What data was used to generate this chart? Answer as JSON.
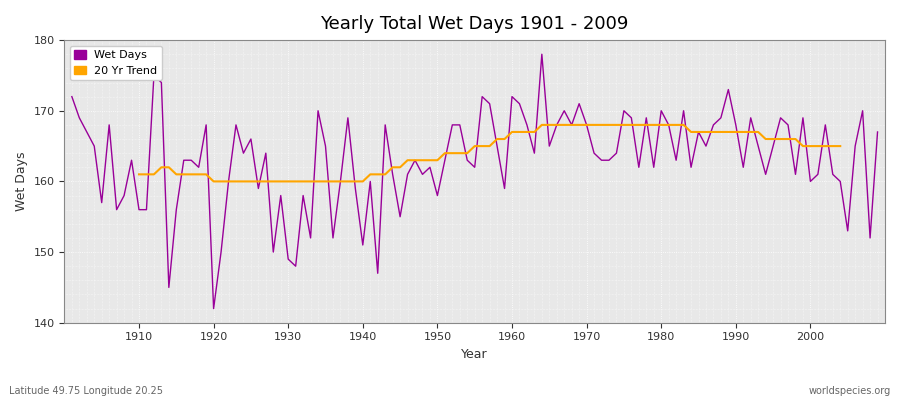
{
  "title": "Yearly Total Wet Days 1901 - 2009",
  "xlabel": "Year",
  "ylabel": "Wet Days",
  "subtitle": "Latitude 49.75 Longitude 20.25",
  "watermark": "worldspecies.org",
  "ylim": [
    140,
    180
  ],
  "yticks": [
    140,
    150,
    160,
    170,
    180
  ],
  "bg_color": "#ffffff",
  "plot_bg_color": "#e8e8e8",
  "wet_days_color": "#990099",
  "trend_color": "#FFA500",
  "years": [
    1901,
    1902,
    1903,
    1904,
    1905,
    1906,
    1907,
    1908,
    1909,
    1910,
    1911,
    1912,
    1913,
    1914,
    1915,
    1916,
    1917,
    1918,
    1919,
    1920,
    1921,
    1922,
    1923,
    1924,
    1925,
    1926,
    1927,
    1928,
    1929,
    1930,
    1931,
    1932,
    1933,
    1934,
    1935,
    1936,
    1937,
    1938,
    1939,
    1940,
    1941,
    1942,
    1943,
    1944,
    1945,
    1946,
    1947,
    1948,
    1949,
    1950,
    1951,
    1952,
    1953,
    1954,
    1955,
    1956,
    1957,
    1958,
    1959,
    1960,
    1961,
    1962,
    1963,
    1964,
    1965,
    1966,
    1967,
    1968,
    1969,
    1970,
    1971,
    1972,
    1973,
    1974,
    1975,
    1976,
    1977,
    1978,
    1979,
    1980,
    1981,
    1982,
    1983,
    1984,
    1985,
    1986,
    1987,
    1988,
    1989,
    1990,
    1991,
    1992,
    1993,
    1994,
    1995,
    1996,
    1997,
    1998,
    1999,
    2000,
    2001,
    2002,
    2003,
    2004,
    2005,
    2006,
    2007,
    2008,
    2009
  ],
  "wet_days": [
    172,
    169,
    167,
    165,
    157,
    168,
    156,
    158,
    163,
    156,
    156,
    175,
    174,
    145,
    156,
    163,
    163,
    162,
    168,
    142,
    150,
    160,
    168,
    164,
    166,
    159,
    164,
    150,
    158,
    149,
    148,
    158,
    152,
    170,
    165,
    152,
    160,
    169,
    159,
    151,
    160,
    147,
    168,
    161,
    155,
    161,
    163,
    161,
    162,
    158,
    163,
    168,
    168,
    163,
    162,
    172,
    171,
    165,
    159,
    172,
    171,
    168,
    164,
    178,
    165,
    168,
    170,
    168,
    171,
    168,
    164,
    163,
    163,
    164,
    170,
    169,
    162,
    169,
    162,
    170,
    168,
    163,
    170,
    162,
    167,
    165,
    168,
    169,
    173,
    168,
    162,
    169,
    165,
    161,
    165,
    169,
    168,
    161,
    169,
    160,
    161,
    168,
    161,
    160,
    153,
    165,
    170,
    152,
    167
  ],
  "trend": [
    null,
    null,
    null,
    null,
    null,
    null,
    null,
    null,
    null,
    161,
    161,
    161,
    162,
    162,
    161,
    161,
    161,
    161,
    161,
    160,
    160,
    160,
    160,
    160,
    160,
    160,
    160,
    160,
    160,
    160,
    160,
    160,
    160,
    160,
    160,
    160,
    160,
    160,
    160,
    160,
    161,
    161,
    161,
    162,
    162,
    163,
    163,
    163,
    163,
    163,
    164,
    164,
    164,
    164,
    165,
    165,
    165,
    166,
    166,
    167,
    167,
    167,
    167,
    168,
    168,
    168,
    168,
    168,
    168,
    168,
    168,
    168,
    168,
    168,
    168,
    168,
    168,
    168,
    168,
    168,
    168,
    168,
    168,
    167,
    167,
    167,
    167,
    167,
    167,
    167,
    167,
    167,
    167,
    166,
    166,
    166,
    166,
    166,
    165,
    165,
    165,
    165,
    165,
    165,
    null,
    null,
    null,
    null,
    null
  ]
}
